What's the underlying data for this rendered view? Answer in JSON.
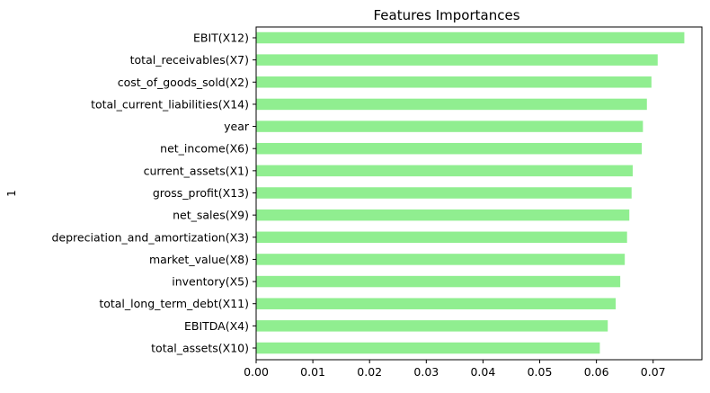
{
  "chart_data": {
    "type": "bar",
    "orientation": "horizontal",
    "title": "Features Importances",
    "xlabel": "",
    "ylabel": "1",
    "categories": [
      "EBIT(X12)",
      "total_receivables(X7)",
      "cost_of_goods_sold(X2)",
      "total_current_liabilities(X14)",
      "year",
      "net_income(X6)",
      "current_assets(X1)",
      "gross_profit(X13)",
      "net_sales(X9)",
      "depreciation_and_amortization(X3)",
      "market_value(X8)",
      "inventory(X5)",
      "total_long_term_debt(X11)",
      "EBITDA(X4)",
      "total_assets(X10)"
    ],
    "values": [
      0.0755,
      0.0708,
      0.0697,
      0.0689,
      0.0682,
      0.068,
      0.0664,
      0.0662,
      0.0658,
      0.0654,
      0.065,
      0.0642,
      0.0634,
      0.062,
      0.0606
    ],
    "xlim": [
      0,
      0.0786
    ],
    "xticks": [
      "0.00",
      "0.01",
      "0.02",
      "0.03",
      "0.04",
      "0.05",
      "0.06",
      "0.07"
    ],
    "xtick_values": [
      0,
      0.01,
      0.02,
      0.03,
      0.04,
      0.05,
      0.06,
      0.07
    ],
    "bar_color": "#90ee90",
    "grid": false,
    "legend": "none"
  }
}
